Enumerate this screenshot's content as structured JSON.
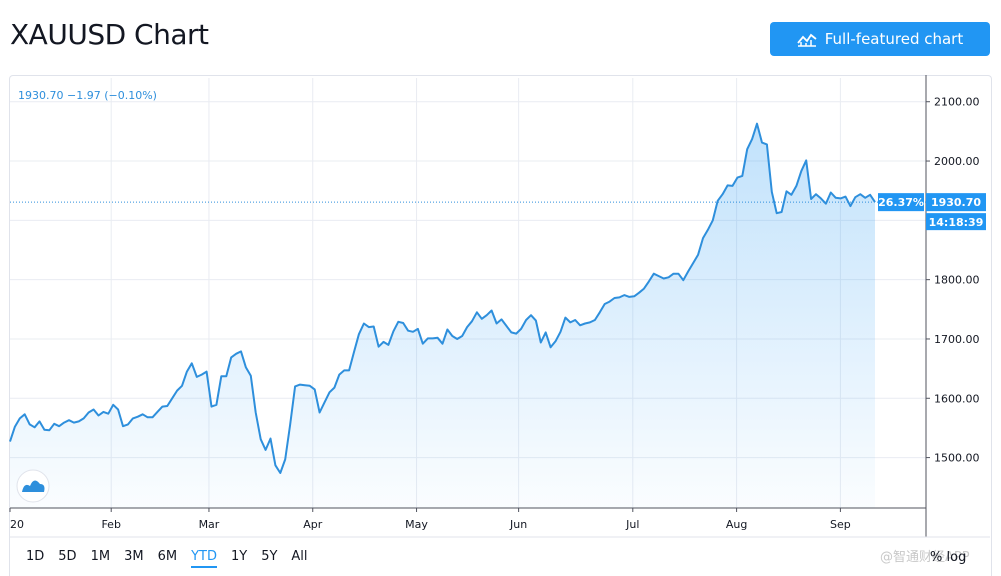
{
  "header": {
    "title": "XAUUSD Chart",
    "full_chart_label": "Full-featured chart"
  },
  "legend": {
    "price_text": "1930.70  −1.97 (−0.10%)"
  },
  "price_axis_labels": {
    "percent": "26.37%",
    "last_price": "1930.70",
    "countdown": "14:18:39"
  },
  "range_buttons": [
    "1D",
    "5D",
    "1M",
    "3M",
    "6M",
    "YTD",
    "1Y",
    "5Y",
    "All"
  ],
  "active_range": "YTD",
  "scale_toggle": {
    "percent": "%",
    "log": "log"
  },
  "watermark": "@智通财经APP",
  "colors": {
    "line": "#2e8fdc",
    "accent": "#2196f3",
    "grid": "#e9ecf2"
  },
  "chart_data": {
    "type": "area",
    "title": "",
    "xlabel": "",
    "ylabel": "",
    "x_tick_labels": [
      "20",
      "Feb",
      "Mar",
      "Apr",
      "May",
      "Jun",
      "Jul",
      "Aug",
      "Sep"
    ],
    "y_ticks": [
      1500,
      1600,
      1700,
      1800,
      1900,
      2000,
      2100
    ],
    "y_tick_labels": [
      "1500.00",
      "1600.00",
      "1700.00",
      "1800.00",
      "1900.00",
      "2000.00",
      "2100.00"
    ],
    "ylim": [
      1415,
      2140
    ],
    "last_value": 1930.7,
    "series": [
      {
        "values": [
          1527,
          1552,
          1566,
          1573,
          1556,
          1551,
          1561,
          1547,
          1546,
          1557,
          1553,
          1559,
          1563,
          1559,
          1561,
          1566,
          1576,
          1581,
          1571,
          1577,
          1574,
          1589,
          1581,
          1553,
          1556,
          1566,
          1569,
          1573,
          1568,
          1568,
          1577,
          1586,
          1587,
          1600,
          1613,
          1621,
          1645,
          1659,
          1636,
          1640,
          1645,
          1586,
          1589,
          1637,
          1637,
          1669,
          1675,
          1679,
          1652,
          1638,
          1576,
          1531,
          1513,
          1532,
          1487,
          1474,
          1497,
          1555,
          1620,
          1623,
          1622,
          1621,
          1615,
          1576,
          1593,
          1610,
          1618,
          1640,
          1647,
          1647,
          1678,
          1708,
          1726,
          1720,
          1721,
          1687,
          1695,
          1690,
          1713,
          1729,
          1727,
          1714,
          1712,
          1717,
          1692,
          1701,
          1701,
          1702,
          1692,
          1716,
          1705,
          1700,
          1705,
          1720,
          1730,
          1745,
          1734,
          1740,
          1748,
          1726,
          1733,
          1722,
          1711,
          1709,
          1717,
          1732,
          1740,
          1731,
          1694,
          1711,
          1686,
          1696,
          1712,
          1736,
          1728,
          1732,
          1723,
          1726,
          1728,
          1732,
          1745,
          1759,
          1763,
          1769,
          1770,
          1774,
          1771,
          1772,
          1778,
          1785,
          1797,
          1810,
          1806,
          1802,
          1804,
          1810,
          1810,
          1799,
          1814,
          1828,
          1842,
          1870,
          1884,
          1900,
          1933,
          1944,
          1959,
          1958,
          1972,
          1975,
          2020,
          2037,
          2063,
          2031,
          2028,
          1948,
          1912,
          1914,
          1949,
          1943,
          1958,
          1983,
          2001,
          1936,
          1944,
          1937,
          1928,
          1947,
          1938,
          1937,
          1940,
          1924,
          1939,
          1944,
          1938,
          1943,
          1930.7
        ]
      }
    ]
  }
}
